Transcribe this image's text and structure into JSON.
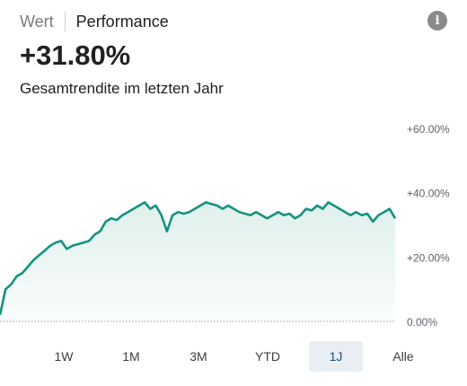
{
  "tabs": {
    "value_label": "Wert",
    "performance_label": "Performance"
  },
  "info_icon": "info-icon",
  "summary": {
    "return_value": "+31.80%",
    "caption": "Gesamtrendite im letzten Jahr"
  },
  "colors": {
    "accent": "#15937f",
    "area_fill": "#dff0ec",
    "baseline": "#9e9e9e",
    "selected_bg": "#e8eef4"
  },
  "chart_data": {
    "type": "area",
    "y_unit": "%",
    "y_ticks": [
      "+60.00%",
      "+40.00%",
      "+20.00%",
      "0.00%"
    ],
    "ylim": [
      0,
      60
    ],
    "values": [
      2,
      10,
      11.5,
      14,
      15,
      17,
      19,
      20.5,
      22,
      23.5,
      24.5,
      25,
      22.5,
      23.5,
      24,
      24.5,
      25,
      27,
      28,
      31,
      32,
      31.5,
      33,
      34,
      35,
      36,
      37,
      35,
      36,
      33,
      28,
      33,
      34,
      33.5,
      34,
      35,
      36,
      37,
      36.5,
      36,
      35,
      36,
      35,
      34,
      33.5,
      33,
      34,
      33,
      32,
      33,
      34,
      33,
      33.5,
      32,
      33,
      35,
      34.5,
      36,
      35,
      37,
      36,
      35,
      34,
      33,
      34,
      33,
      33.5,
      31,
      33,
      34,
      35,
      32
    ],
    "ranges": [
      "1W",
      "1M",
      "3M",
      "YTD",
      "1J",
      "Alle"
    ],
    "selected_range": "1J"
  }
}
